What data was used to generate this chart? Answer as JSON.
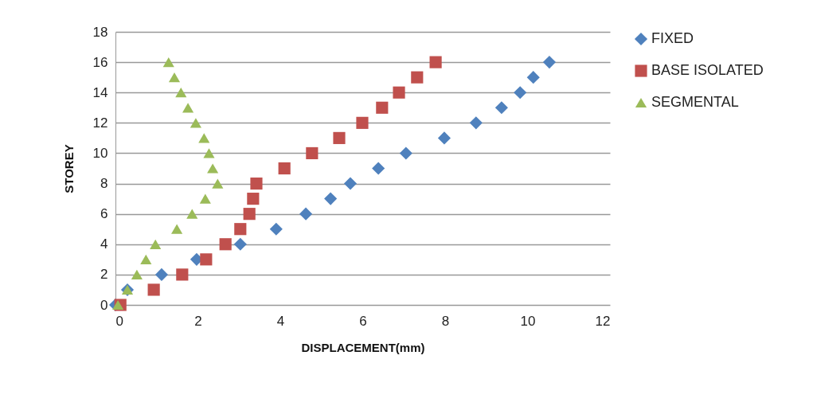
{
  "chart_data": {
    "type": "scatter",
    "xlabel": "DISPLACEMENT(mm)",
    "ylabel": "STOREY",
    "xlim": [
      0,
      12
    ],
    "xticks": [
      0,
      2,
      4,
      6,
      8,
      10,
      12
    ],
    "ylim": [
      0,
      18
    ],
    "yticks": [
      0,
      2,
      4,
      6,
      8,
      10,
      12,
      14,
      16,
      18
    ],
    "grid": "y",
    "legend": "right",
    "series": [
      {
        "name": "FIXED",
        "color": "#4f81bd",
        "marker": "diamond",
        "x": [
          0,
          0.29,
          1.12,
          1.97,
          3.03,
          3.9,
          4.62,
          5.22,
          5.7,
          6.38,
          7.05,
          7.98,
          8.75,
          9.37,
          9.82,
          10.14,
          10.53
        ],
        "values": [
          0,
          1,
          2,
          3,
          4,
          5,
          6,
          7,
          8,
          9,
          10,
          11,
          12,
          13,
          14,
          15,
          16
        ]
      },
      {
        "name": "BASE ISOLATED",
        "color": "#c0504d",
        "marker": "square",
        "x": [
          0.12,
          0.93,
          1.62,
          2.2,
          2.67,
          3.03,
          3.25,
          3.34,
          3.42,
          4.1,
          4.77,
          5.43,
          5.99,
          6.47,
          6.88,
          7.32,
          7.77
        ],
        "values": [
          0,
          1,
          2,
          3,
          4,
          5,
          6,
          7,
          8,
          9,
          10,
          11,
          12,
          13,
          14,
          15,
          16
        ]
      },
      {
        "name": "SEGMENTAL",
        "color": "#9bbb59",
        "marker": "triangle",
        "x": [
          0.06,
          0.29,
          0.52,
          0.74,
          0.97,
          1.49,
          1.86,
          2.18,
          2.48,
          2.36,
          2.27,
          2.15,
          1.95,
          1.76,
          1.59,
          1.43,
          1.29
        ],
        "values": [
          0,
          1,
          2,
          3,
          4,
          5,
          6,
          7,
          8,
          9,
          10,
          11,
          12,
          13,
          14,
          15,
          16
        ]
      }
    ]
  }
}
